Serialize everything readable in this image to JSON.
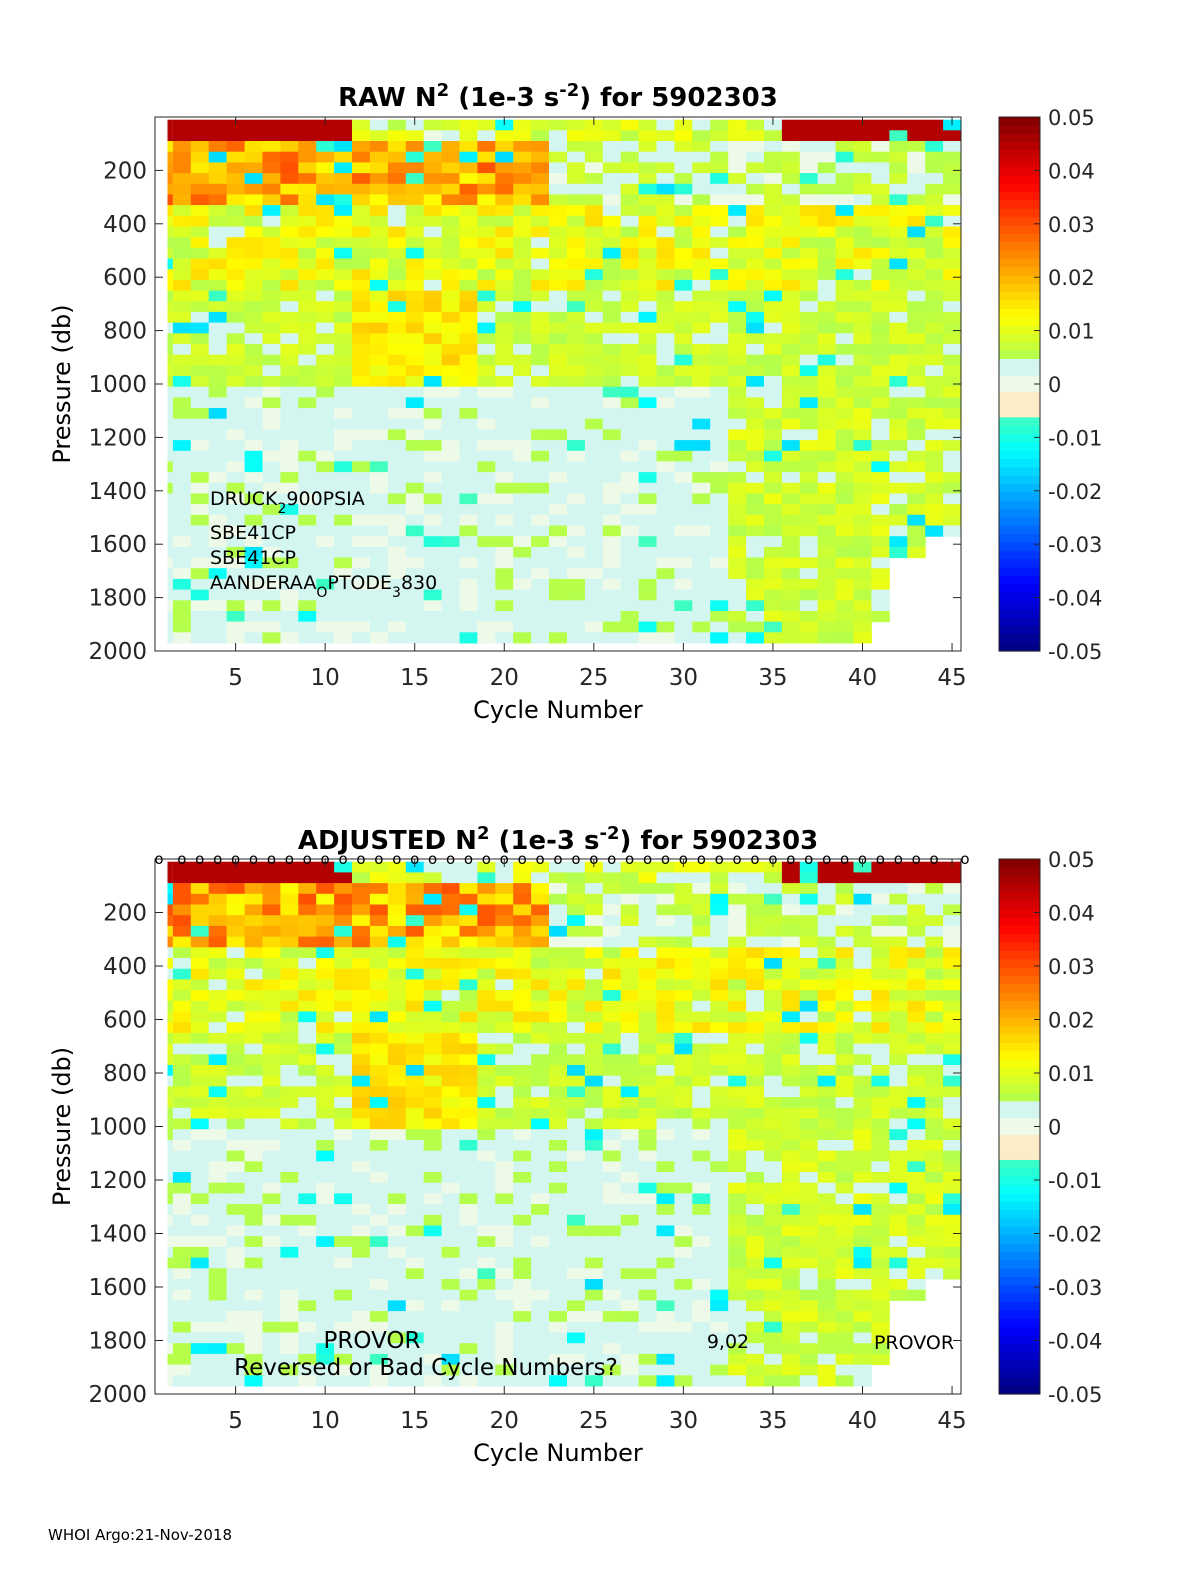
{
  "footer": "WHOI Argo:21-Nov-2018",
  "chart_data": [
    {
      "type": "heatmap",
      "title": {
        "prefix": "RAW N",
        "exp1": "2",
        "mid": " (1e-3 s",
        "exp2": "-2",
        "suffix": ") for 5902303"
      },
      "xlabel": "Cycle Number",
      "ylabel": "Pressure (db)",
      "xlim": [
        1,
        45
      ],
      "ylim": [
        2000,
        0
      ],
      "y_reversed": true,
      "xticks": [
        5,
        10,
        15,
        20,
        25,
        30,
        35,
        40,
        45
      ],
      "yticks": [
        200,
        400,
        600,
        800,
        1000,
        1200,
        1400,
        1600,
        1800,
        2000
      ],
      "colorbar": {
        "min": -0.05,
        "max": 0.05,
        "colormap": "jet",
        "ticks": [
          0.05,
          0.04,
          0.03,
          0.02,
          0.01,
          0,
          -0.01,
          -0.02,
          -0.03,
          -0.04,
          -0.05
        ]
      },
      "annotations": [
        {
          "text": "DRUCK",
          "sub": "2",
          "rest": "900PSIA"
        },
        {
          "text": "SBE41CP"
        },
        {
          "text": "SBE41CP"
        },
        {
          "text": "AANDERAA",
          "sub": "O",
          "rest": "PTODE",
          "sub2": "3",
          "rest2": "830"
        }
      ]
    },
    {
      "type": "heatmap",
      "title": {
        "prefix": "ADJUSTED N",
        "exp1": "2",
        "mid": " (1e-3 s",
        "exp2": "-2",
        "suffix": ") for 5902303"
      },
      "xlabel": "Cycle Number",
      "ylabel": "Pressure (db)",
      "xlim": [
        1,
        45
      ],
      "ylim": [
        2000,
        0
      ],
      "y_reversed": true,
      "xticks": [
        5,
        10,
        15,
        20,
        25,
        30,
        35,
        40,
        45
      ],
      "yticks": [
        200,
        400,
        600,
        800,
        1000,
        1200,
        1400,
        1600,
        1800,
        2000
      ],
      "colorbar": {
        "min": -0.05,
        "max": 0.05,
        "colormap": "jet",
        "ticks": [
          0.05,
          0.04,
          0.03,
          0.02,
          0.01,
          0,
          -0.01,
          -0.02,
          -0.03,
          -0.04,
          -0.05
        ]
      },
      "marker_row": {
        "symbol": "o",
        "cycles": [
          1,
          2,
          3,
          4,
          5,
          6,
          7,
          8,
          9,
          10,
          11,
          12,
          13,
          14,
          15,
          16,
          17,
          18,
          19,
          20,
          21,
          22,
          23,
          24,
          25,
          26,
          27,
          28,
          29,
          30,
          31,
          32,
          33,
          34,
          35,
          36,
          37,
          38,
          39,
          40,
          41,
          42,
          43,
          44,
          45
        ]
      },
      "annotations": [
        {
          "text": "PROVOR"
        },
        {
          "text": "Reversed or Bad Cycle Numbers?"
        },
        {
          "text": "9,02"
        },
        {
          "text": "PROVOR"
        }
      ]
    }
  ]
}
